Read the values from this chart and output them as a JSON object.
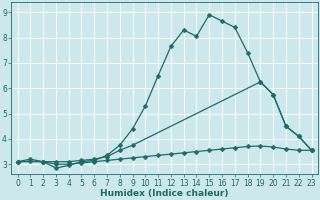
{
  "xlabel": "Humidex (Indice chaleur)",
  "bg_color": "#cde8ec",
  "grid_color": "#ffffff",
  "line_color": "#1e6b65",
  "xlim": [
    -0.5,
    23.5
  ],
  "ylim": [
    2.6,
    9.4
  ],
  "xticks": [
    0,
    1,
    2,
    3,
    4,
    5,
    6,
    7,
    8,
    9,
    10,
    11,
    12,
    13,
    14,
    15,
    16,
    17,
    18,
    19,
    20,
    21,
    22,
    23
  ],
  "yticks": [
    3,
    4,
    5,
    6,
    7,
    8,
    9
  ],
  "line1_x": [
    0,
    1,
    2,
    3,
    4,
    5,
    6,
    7,
    8,
    9,
    10,
    11,
    12,
    13,
    14,
    15,
    16,
    17,
    18,
    19,
    20,
    21,
    22,
    23
  ],
  "line1_y": [
    3.1,
    3.2,
    3.1,
    2.85,
    2.95,
    3.1,
    3.15,
    3.35,
    3.75,
    4.4,
    5.3,
    6.5,
    7.65,
    8.3,
    8.05,
    8.9,
    8.65,
    8.4,
    7.4,
    6.25,
    5.75,
    4.5,
    4.1,
    3.55
  ],
  "line2_x": [
    0,
    2,
    3,
    4,
    5,
    6,
    7,
    8,
    9,
    19,
    20,
    21,
    22,
    23
  ],
  "line2_y": [
    3.1,
    3.1,
    3.1,
    3.1,
    3.15,
    3.2,
    3.3,
    3.55,
    3.75,
    6.25,
    5.75,
    4.5,
    4.1,
    3.55
  ],
  "line3_x": [
    0,
    1,
    2,
    3,
    4,
    5,
    6,
    7,
    8,
    9,
    10,
    11,
    12,
    13,
    14,
    15,
    16,
    17,
    18,
    19,
    20,
    21,
    22,
    23
  ],
  "line3_y": [
    3.1,
    3.12,
    3.1,
    3.0,
    3.0,
    3.05,
    3.1,
    3.15,
    3.2,
    3.25,
    3.3,
    3.35,
    3.4,
    3.45,
    3.5,
    3.55,
    3.6,
    3.65,
    3.7,
    3.72,
    3.68,
    3.6,
    3.55,
    3.55
  ]
}
